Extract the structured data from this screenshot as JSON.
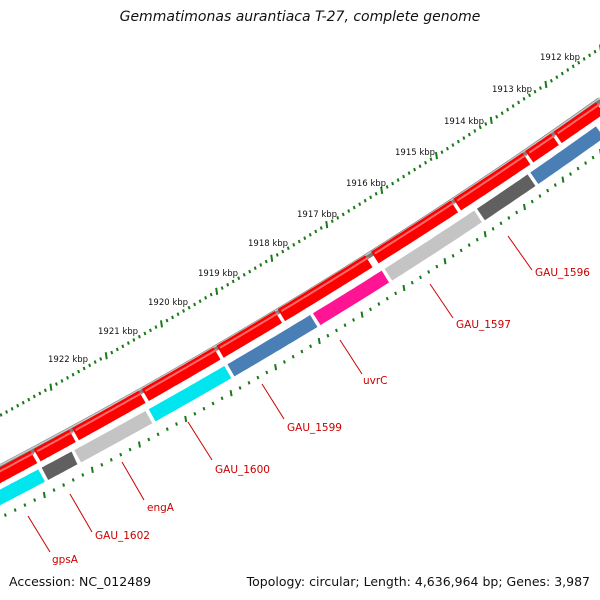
{
  "title": "Gemmatimonas aurantiaca T-27, complete genome",
  "accession": "Accession: NC_012489",
  "summary": "Topology: circular; Length: 4,636,964 bp; Genes: 3,987",
  "scale_labels": [
    "1912 kbp",
    "1913 kbp",
    "1914 kbp",
    "1915 kbp",
    "1916 kbp",
    "1917 kbp",
    "1918 kbp",
    "1919 kbp",
    "1920 kbp",
    "1921 kbp",
    "1922 kbp"
  ],
  "gene_labels": [
    "GAU_1596",
    "GAU_1597",
    "uvrC",
    "GAU_1599",
    "GAU_1600",
    "engA",
    "GAU_1602",
    "gpsA"
  ],
  "colors": {
    "cds": "#ff0000",
    "backbone": "#808080",
    "tick": "#1a7a1a",
    "label": "#cc0000",
    "gene_blue": "#4a7fb5",
    "gene_magenta": "#ff1493",
    "gene_cyan": "#00e5ee",
    "gene_darkgray": "#606060",
    "gene_lightgray": "#c4c4c4"
  },
  "gene_track_colors": [
    "gene_blue",
    "gene_darkgray",
    "gene_lightgray",
    "gene_magenta",
    "gene_blue",
    "gene_cyan",
    "gene_lightgray",
    "gene_darkgray",
    "gene_cyan"
  ]
}
